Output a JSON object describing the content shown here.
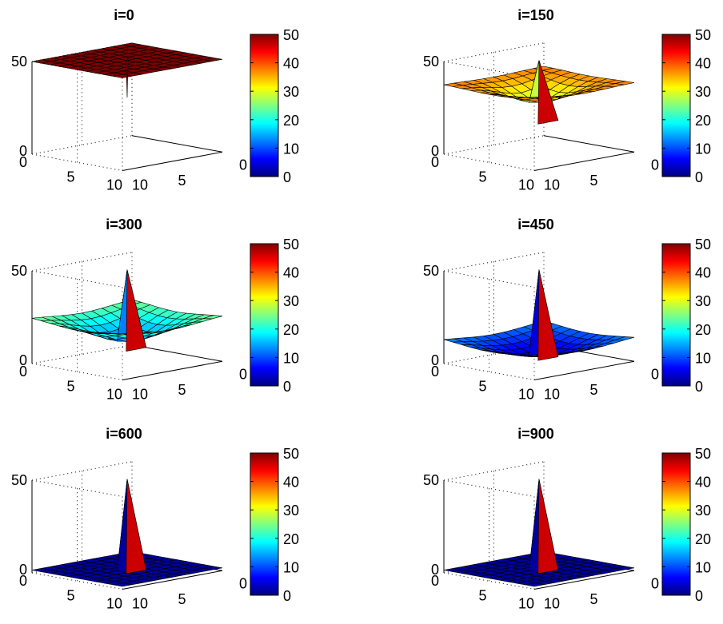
{
  "chart_data": [
    {
      "type": "surface",
      "title": "i=0",
      "phase": 0,
      "grid_size": 11,
      "zlim": [
        0,
        50
      ],
      "ztick_labels": [
        "0",
        "50"
      ],
      "x_tick_labels": [
        "5",
        "10"
      ],
      "y_tick_labels": [
        "0",
        "10"
      ],
      "spike_value": 50,
      "colorbar": {
        "range": [
          0,
          50
        ],
        "tick_labels": [
          "0",
          "10",
          "20",
          "30",
          "40",
          "50"
        ]
      }
    },
    {
      "type": "surface",
      "title": "i=150",
      "phase": 0.167,
      "grid_size": 11,
      "zlim": [
        0,
        50
      ],
      "ztick_labels": [
        "0",
        "50"
      ],
      "x_tick_labels": [
        "5",
        "10"
      ],
      "y_tick_labels": [
        "0",
        "10"
      ],
      "spike_value": 50,
      "colorbar": {
        "range": [
          0,
          50
        ],
        "tick_labels": [
          "0",
          "10",
          "20",
          "30",
          "40",
          "50"
        ]
      }
    },
    {
      "type": "surface",
      "title": "i=300",
      "phase": 0.333,
      "grid_size": 11,
      "zlim": [
        0,
        50
      ],
      "ztick_labels": [
        "0",
        "50"
      ],
      "x_tick_labels": [
        "5",
        "10"
      ],
      "y_tick_labels": [
        "0",
        "10"
      ],
      "spike_value": 50,
      "colorbar": {
        "range": [
          0,
          50
        ],
        "tick_labels": [
          "0",
          "10",
          "20",
          "30",
          "40",
          "50"
        ]
      }
    },
    {
      "type": "surface",
      "title": "i=450",
      "phase": 0.5,
      "grid_size": 11,
      "zlim": [
        0,
        50
      ],
      "ztick_labels": [
        "0",
        "50"
      ],
      "x_tick_labels": [
        "5",
        "10"
      ],
      "y_tick_labels": [
        "0",
        "10"
      ],
      "spike_value": 50,
      "colorbar": {
        "range": [
          0,
          50
        ],
        "tick_labels": [
          "0",
          "10",
          "20",
          "30",
          "40",
          "50"
        ]
      }
    },
    {
      "type": "surface",
      "title": "i=600",
      "phase": 0.667,
      "grid_size": 11,
      "zlim": [
        0,
        50
      ],
      "ztick_labels": [
        "0",
        "50"
      ],
      "x_tick_labels": [
        "5",
        "10"
      ],
      "y_tick_labels": [
        "0",
        "10"
      ],
      "spike_value": 50,
      "colorbar": {
        "range": [
          0,
          50
        ],
        "tick_labels": [
          "0",
          "10",
          "20",
          "30",
          "40",
          "50"
        ]
      }
    },
    {
      "type": "surface",
      "title": "i=900",
      "phase": 1,
      "grid_size": 11,
      "zlim": [
        0,
        50
      ],
      "ztick_labels": [
        "0",
        "50"
      ],
      "x_tick_labels": [
        "5",
        "10"
      ],
      "y_tick_labels": [
        "0",
        "10"
      ],
      "spike_value": 50,
      "colorbar": {
        "range": [
          0,
          50
        ],
        "tick_labels": [
          "0",
          "10",
          "20",
          "30",
          "40",
          "50"
        ]
      }
    }
  ]
}
